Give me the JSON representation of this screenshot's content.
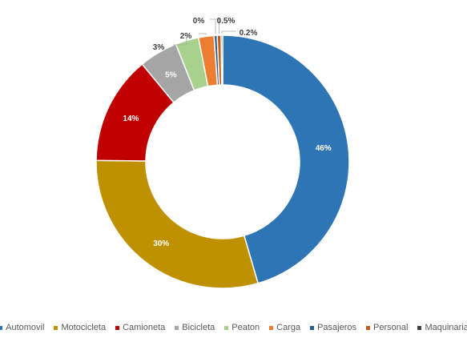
{
  "chart_data": {
    "type": "pie",
    "variant": "donut",
    "title": "",
    "legend_position": "bottom",
    "slices": [
      {
        "name": "Automovil",
        "value": 46,
        "label": "46%",
        "color": "#2E75B6",
        "label_color": "#ffffff"
      },
      {
        "name": "Motocicleta",
        "value": 30,
        "label": "30%",
        "color": "#BF9000",
        "label_color": "#ffffff"
      },
      {
        "name": "Camioneta",
        "value": 14,
        "label": "14%",
        "color": "#C00000",
        "label_color": "#ffffff"
      },
      {
        "name": "Bicicleta",
        "value": 5,
        "label": "5%",
        "color": "#A5A5A5",
        "label_color": "#ffffff"
      },
      {
        "name": "Peaton",
        "value": 3,
        "label": "3%",
        "color": "#A9D18E",
        "label_color": "#404040"
      },
      {
        "name": "Carga",
        "value": 2,
        "label": "2%",
        "color": "#ED7D31",
        "label_color": "#404040"
      },
      {
        "name": "Pasajeros",
        "value": 0.4,
        "label": "0%",
        "color": "#255E91",
        "label_color": "#404040"
      },
      {
        "name": "Personal",
        "value": 0.5,
        "label": "0.5%",
        "color": "#C55A11",
        "label_color": "#404040"
      },
      {
        "name": "Maquinaria",
        "value": 0.2,
        "label": "0.2%",
        "color": "#404040",
        "label_color": "#404040"
      }
    ]
  }
}
